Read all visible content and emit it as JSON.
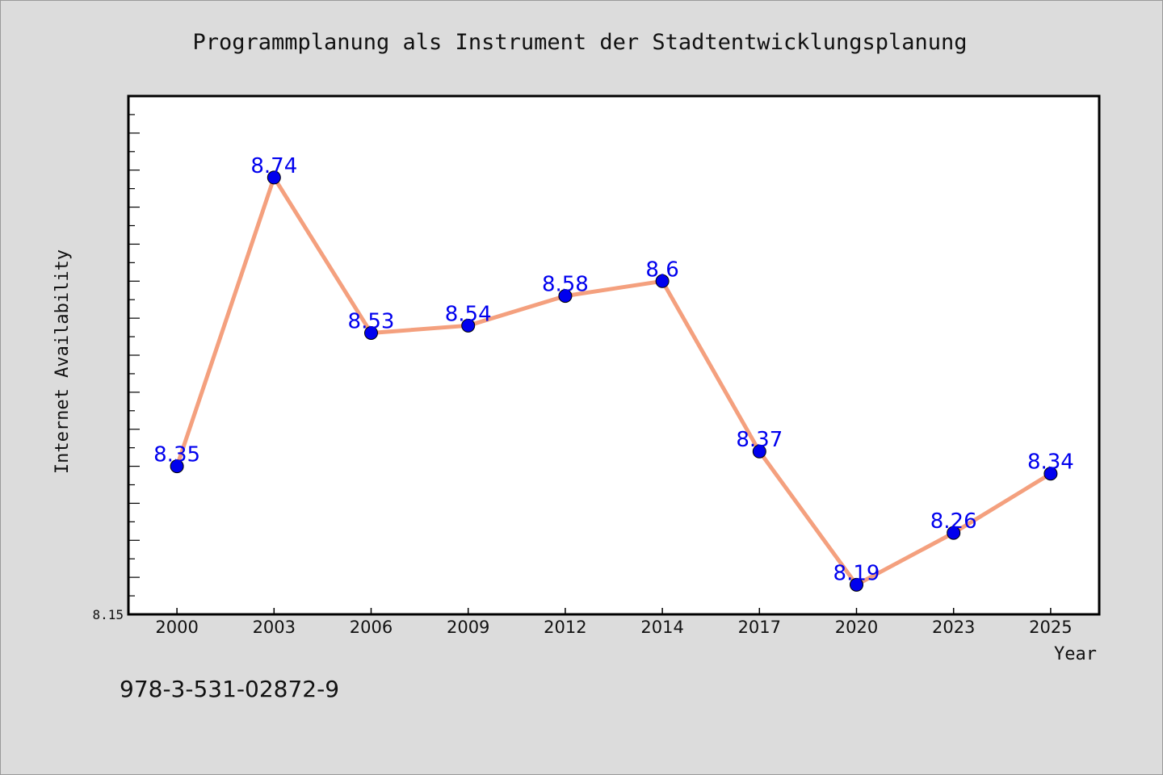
{
  "chart_data": {
    "type": "line",
    "title": "Programmplanung als Instrument der Stadtentwicklungsplanung",
    "xlabel": "Year",
    "ylabel": "Internet Availability",
    "categories": [
      "2000",
      "2003",
      "2006",
      "2009",
      "2012",
      "2014",
      "2017",
      "2020",
      "2023",
      "2025"
    ],
    "series": [
      {
        "values": [
          8.35,
          8.74,
          8.53,
          8.54,
          8.58,
          8.6,
          8.37,
          8.19,
          8.26,
          8.34
        ]
      }
    ],
    "data_labels": [
      "8.35",
      "8.74",
      "8.53",
      "8.54",
      "8.58",
      "8.6",
      "8.37",
      "8.19",
      "8.26",
      "8.34"
    ],
    "ytick_labels": [
      "8.15"
    ],
    "ylim": [
      8.15,
      8.85
    ],
    "grid": false,
    "legend": "none",
    "colors": {
      "line": "#f4a07e",
      "marker": "#0000ee",
      "label": "#0000ee",
      "background": "#dcdcdc",
      "plot_bg": "#ffffff"
    }
  },
  "footer": {
    "isbn": "978-3-531-02872-9"
  }
}
